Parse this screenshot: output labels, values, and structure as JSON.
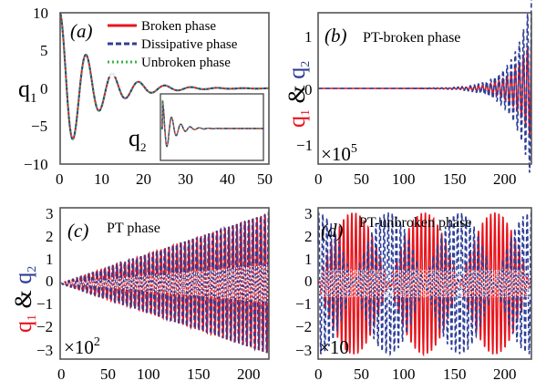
{
  "chart_data": [
    {
      "type": "line",
      "panel": "(a)",
      "ylabel": "q1",
      "xlim": [
        0,
        50
      ],
      "ylim": [
        -10,
        10
      ],
      "xticks": [
        "0",
        "10",
        "20",
        "30",
        "40",
        "50"
      ],
      "yticks": [
        "10",
        "5",
        "0",
        "-5",
        "-10"
      ],
      "legend": {
        "position": "top-right",
        "entries": [
          "Broken phase",
          "Dissipative phase",
          "Unbroken phase"
        ]
      },
      "series": [
        {
          "name": "Broken phase",
          "color": "#e8141c",
          "style": "solid",
          "model": {
            "amp": 10,
            "decay": 0.13,
            "omega": 1.0
          }
        },
        {
          "name": "Dissipative phase",
          "color": "#2e3e97",
          "style": "dashed",
          "model": {
            "amp": 10,
            "decay": 0.13,
            "omega": 1.0
          }
        },
        {
          "name": "Unbroken phase",
          "color": "#3db34a",
          "style": "dotted",
          "model": {
            "amp": 10,
            "decay": 0.13,
            "omega": 1.0
          }
        }
      ],
      "inset": {
        "ylabel": "q2",
        "description": "damped oscillation, same three phases"
      }
    },
    {
      "type": "line",
      "panel": "(b)",
      "title": "PT-broken phase",
      "ylabel": "q1 & q2",
      "xlim": [
        0,
        205
      ],
      "ylim": [
        -1.2,
        1.2
      ],
      "scale_label": "×10^5",
      "xticks": [
        "0",
        "50",
        "100",
        "150",
        "200"
      ],
      "yticks": [
        "1",
        "0",
        "-1"
      ],
      "series": [
        {
          "name": "q1",
          "color": "#e8141c",
          "style": "solid",
          "model": {
            "envelope": "exp",
            "growth": 0.06,
            "amp_at_end": 0.6,
            "omega": 1.6
          }
        },
        {
          "name": "q2",
          "color": "#2e3e97",
          "style": "dashed",
          "model": {
            "envelope": "exp",
            "growth": 0.06,
            "amp_at_end": 1.1,
            "omega": 1.6
          }
        }
      ]
    },
    {
      "type": "line",
      "panel": "(c)",
      "title": "PT phase",
      "ylabel": "q1 & q2",
      "xlim": [
        0,
        205
      ],
      "ylim": [
        -3.2,
        3.2
      ],
      "scale_label": "×10^2",
      "xticks": [
        "0",
        "50",
        "100",
        "150",
        "200"
      ],
      "yticks": [
        "3",
        "2",
        "1",
        "0",
        "-1",
        "-2",
        "-3"
      ],
      "series": [
        {
          "name": "q1",
          "color": "#e8141c",
          "style": "solid",
          "model": {
            "envelope": "linear",
            "slope": 0.0145,
            "omega": 1.6
          }
        },
        {
          "name": "q2",
          "color": "#2e3e97",
          "style": "dashed",
          "model": {
            "envelope": "linear",
            "slope": 0.0145,
            "omega": 1.6
          }
        }
      ]
    },
    {
      "type": "line",
      "panel": "(d)",
      "title": "PT-unbroken phase",
      "ylabel": "",
      "xlim": [
        0,
        205
      ],
      "ylim": [
        -3.2,
        3.2
      ],
      "scale_label": "×10",
      "xticks": [
        "0",
        "50",
        "100",
        "150",
        "200"
      ],
      "yticks": [
        "3",
        "2",
        "1",
        "0",
        "-1",
        "-2",
        "-3"
      ],
      "series": [
        {
          "name": "q1",
          "color": "#e8141c",
          "style": "solid",
          "model": {
            "envelope": "beat",
            "amp": 3.0,
            "beat_period": 68,
            "omega": 1.6
          }
        },
        {
          "name": "q2",
          "color": "#2e3e97",
          "style": "dashed",
          "model": {
            "envelope": "beat_shifted",
            "amp": 3.0,
            "beat_period": 68,
            "omega": 1.6
          }
        }
      ]
    }
  ]
}
